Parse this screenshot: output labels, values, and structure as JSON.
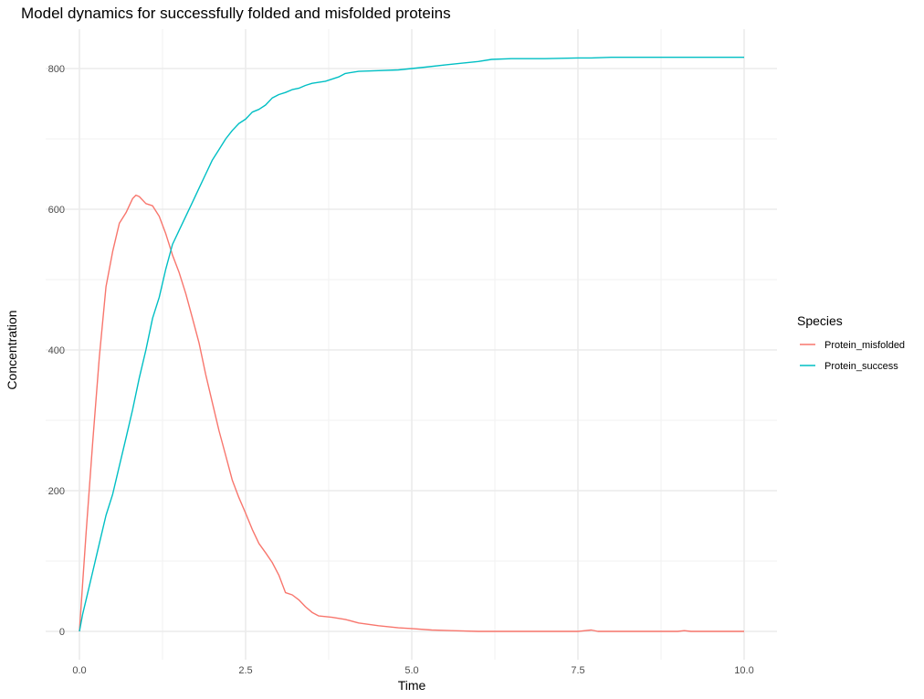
{
  "chart_data": {
    "type": "line",
    "title": "Model dynamics for successfully folded and misfolded proteins",
    "xlabel": "Time",
    "ylabel": "Concentration",
    "xlim": [
      0,
      10
    ],
    "ylim": [
      0,
      850
    ],
    "x_ticks": [
      0,
      2.5,
      5,
      7.5,
      10
    ],
    "x_tick_labels": [
      "0.0",
      "2.5",
      "5.0",
      "7.5",
      "10.0"
    ],
    "y_ticks": [
      0,
      200,
      400,
      600,
      800
    ],
    "y_tick_labels": [
      "0",
      "200",
      "400",
      "600",
      "800"
    ],
    "grid": true,
    "legend": {
      "title": "Species",
      "position": "right"
    },
    "series": [
      {
        "name": "Protein_misfolded",
        "color": "#F8766D",
        "x": [
          0,
          0.05,
          0.1,
          0.2,
          0.3,
          0.4,
          0.5,
          0.6,
          0.7,
          0.8,
          0.85,
          0.9,
          1.0,
          1.1,
          1.2,
          1.3,
          1.4,
          1.5,
          1.6,
          1.7,
          1.8,
          1.9,
          2.0,
          2.1,
          2.2,
          2.3,
          2.4,
          2.5,
          2.6,
          2.7,
          2.8,
          2.9,
          3.0,
          3.1,
          3.2,
          3.3,
          3.4,
          3.5,
          3.6,
          3.8,
          4.0,
          4.2,
          4.5,
          4.8,
          5.0,
          5.3,
          5.6,
          6.0,
          7.0,
          7.5,
          7.7,
          7.8,
          8.0,
          9.0,
          9.1,
          9.2,
          10.0
        ],
        "y": [
          0,
          70,
          140,
          270,
          390,
          490,
          540,
          580,
          595,
          615,
          620,
          618,
          608,
          605,
          590,
          565,
          535,
          510,
          480,
          445,
          410,
          365,
          325,
          285,
          250,
          215,
          190,
          168,
          145,
          125,
          112,
          98,
          80,
          55,
          52,
          45,
          35,
          27,
          22,
          20,
          17,
          12,
          8,
          5,
          4,
          2,
          1,
          0,
          0,
          0,
          2,
          0,
          0,
          0,
          1,
          0,
          0
        ]
      },
      {
        "name": "Protein_success",
        "color": "#00BFC4",
        "x": [
          0,
          0.05,
          0.1,
          0.2,
          0.3,
          0.4,
          0.5,
          0.6,
          0.7,
          0.8,
          0.9,
          1.0,
          1.1,
          1.2,
          1.3,
          1.4,
          1.5,
          1.6,
          1.7,
          1.8,
          1.9,
          2.0,
          2.1,
          2.2,
          2.3,
          2.4,
          2.5,
          2.6,
          2.7,
          2.8,
          2.9,
          3.0,
          3.1,
          3.2,
          3.3,
          3.4,
          3.5,
          3.7,
          3.9,
          4.0,
          4.2,
          4.5,
          4.8,
          5.0,
          5.2,
          5.5,
          5.8,
          6.0,
          6.2,
          6.5,
          7.0,
          7.5,
          7.7,
          8.0,
          9.0,
          10.0
        ],
        "y": [
          0,
          25,
          45,
          85,
          125,
          165,
          195,
          235,
          275,
          315,
          360,
          400,
          445,
          475,
          515,
          550,
          570,
          590,
          610,
          630,
          650,
          670,
          685,
          700,
          712,
          722,
          728,
          738,
          742,
          748,
          758,
          763,
          766,
          770,
          772,
          776,
          779,
          782,
          788,
          793,
          796,
          797,
          798,
          800,
          802,
          805,
          808,
          810,
          813,
          814,
          814,
          815,
          815,
          816,
          816,
          816
        ]
      }
    ]
  }
}
